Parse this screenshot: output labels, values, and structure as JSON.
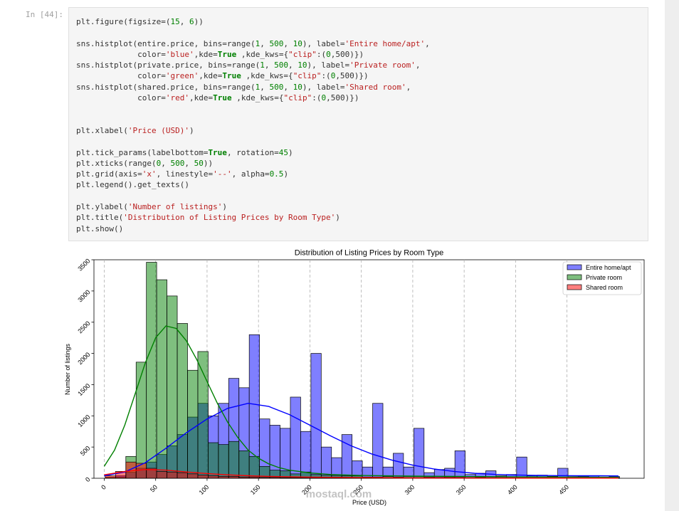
{
  "cell": {
    "prompt": "In [44]:",
    "code_lines": [
      "plt.figure(figsize=(15, 6))",
      "",
      "sns.histplot(entire.price, bins=range(1, 500, 10), label='Entire home/apt',",
      "             color='blue',kde=True ,kde_kws={\"clip\":(0,500)})",
      "sns.histplot(private.price, bins=range(1, 500, 10), label='Private room',",
      "             color='green',kde=True ,kde_kws={\"clip\":(0,500)})",
      "sns.histplot(shared.price, bins=range(1, 500, 10), label='Shared room',",
      "             color='red',kde=True ,kde_kws={\"clip\":(0,500)})",
      "",
      "",
      "plt.xlabel('Price (USD)')",
      "",
      "plt.tick_params(labelbottom=True, rotation=45)",
      "plt.xticks(range(0, 500, 50))",
      "plt.grid(axis='x', linestyle='--', alpha=0.5)",
      "plt.legend().get_texts()",
      "",
      "plt.ylabel('Number of listings')",
      "plt.title('Distribution of Listing Prices by Room Type')",
      "plt.show()"
    ]
  },
  "watermark": "mostaql.com",
  "chart_data": {
    "type": "histogram",
    "title": "Distribution of Listing Prices by Room Type",
    "xlabel": "Price (USD)",
    "ylabel": "Number of listings",
    "xlim": [
      -10,
      525
    ],
    "ylim": [
      0,
      3500
    ],
    "xticks": [
      0,
      50,
      100,
      150,
      200,
      250,
      300,
      350,
      400,
      450
    ],
    "yticks": [
      0,
      500,
      1000,
      1500,
      2000,
      2500,
      3000,
      3500
    ],
    "grid": "x, dashed",
    "legend_position": "top-right",
    "bin_edges_start": 1,
    "bin_width": 10,
    "series": [
      {
        "name": "Entire home/apt",
        "color": "#0000ff",
        "values": [
          5,
          40,
          95,
          160,
          260,
          380,
          520,
          700,
          980,
          1200,
          1000,
          1200,
          1600,
          1450,
          2300,
          950,
          850,
          800,
          1300,
          750,
          2000,
          500,
          330,
          700,
          280,
          180,
          1200,
          180,
          400,
          180,
          800,
          90,
          140,
          160,
          440,
          60,
          80,
          120,
          40,
          60,
          340,
          40,
          50,
          30,
          160,
          25,
          30,
          40,
          20,
          30
        ],
        "kde": [
          [
            0,
            40
          ],
          [
            20,
            100
          ],
          [
            40,
            250
          ],
          [
            60,
            480
          ],
          [
            80,
            730
          ],
          [
            100,
            950
          ],
          [
            120,
            1120
          ],
          [
            140,
            1200
          ],
          [
            160,
            1150
          ],
          [
            180,
            1020
          ],
          [
            200,
            850
          ],
          [
            220,
            680
          ],
          [
            240,
            520
          ],
          [
            260,
            390
          ],
          [
            280,
            290
          ],
          [
            300,
            210
          ],
          [
            320,
            150
          ],
          [
            340,
            110
          ],
          [
            360,
            80
          ],
          [
            380,
            62
          ],
          [
            400,
            52
          ],
          [
            420,
            46
          ],
          [
            440,
            42
          ],
          [
            460,
            40
          ],
          [
            480,
            40
          ],
          [
            500,
            38
          ]
        ]
      },
      {
        "name": "Private room",
        "color": "#008000",
        "values": [
          20,
          20,
          350,
          1860,
          3460,
          3180,
          2920,
          2480,
          1730,
          2030,
          570,
          540,
          590,
          440,
          350,
          190,
          130,
          120,
          70,
          100,
          60,
          50,
          45,
          40,
          40,
          20,
          20,
          30,
          20,
          30,
          30,
          20,
          15,
          20,
          15,
          10,
          15,
          10,
          10,
          10,
          10,
          10,
          10,
          10,
          10,
          10,
          10,
          10,
          10,
          10
        ],
        "kde": [
          [
            0,
            190
          ],
          [
            10,
            450
          ],
          [
            20,
            850
          ],
          [
            30,
            1350
          ],
          [
            40,
            1850
          ],
          [
            50,
            2250
          ],
          [
            60,
            2440
          ],
          [
            70,
            2400
          ],
          [
            80,
            2200
          ],
          [
            90,
            1900
          ],
          [
            100,
            1550
          ],
          [
            110,
            1200
          ],
          [
            120,
            900
          ],
          [
            130,
            650
          ],
          [
            140,
            450
          ],
          [
            150,
            320
          ],
          [
            160,
            230
          ],
          [
            170,
            170
          ],
          [
            180,
            130
          ],
          [
            200,
            85
          ],
          [
            220,
            60
          ],
          [
            250,
            45
          ],
          [
            300,
            35
          ],
          [
            350,
            28
          ],
          [
            400,
            22
          ],
          [
            450,
            18
          ],
          [
            500,
            15
          ]
        ]
      },
      {
        "name": "Shared room",
        "color": "#ff0000",
        "values": [
          40,
          110,
          260,
          240,
          160,
          110,
          100,
          90,
          70,
          50,
          40,
          30,
          30,
          20,
          20,
          15,
          15,
          10,
          10,
          10,
          10,
          5,
          5,
          5,
          5,
          5,
          5,
          5,
          5,
          5,
          5,
          5,
          5,
          5,
          5,
          5,
          5,
          5,
          5,
          5,
          5,
          5,
          5,
          5,
          5,
          5,
          5,
          5,
          5,
          5
        ],
        "kde": [
          [
            0,
            55
          ],
          [
            20,
            110
          ],
          [
            40,
            140
          ],
          [
            60,
            130
          ],
          [
            80,
            100
          ],
          [
            100,
            75
          ],
          [
            120,
            55
          ],
          [
            140,
            40
          ],
          [
            160,
            30
          ],
          [
            200,
            18
          ],
          [
            250,
            10
          ],
          [
            300,
            6
          ],
          [
            400,
            3
          ],
          [
            500,
            2
          ]
        ]
      }
    ]
  }
}
